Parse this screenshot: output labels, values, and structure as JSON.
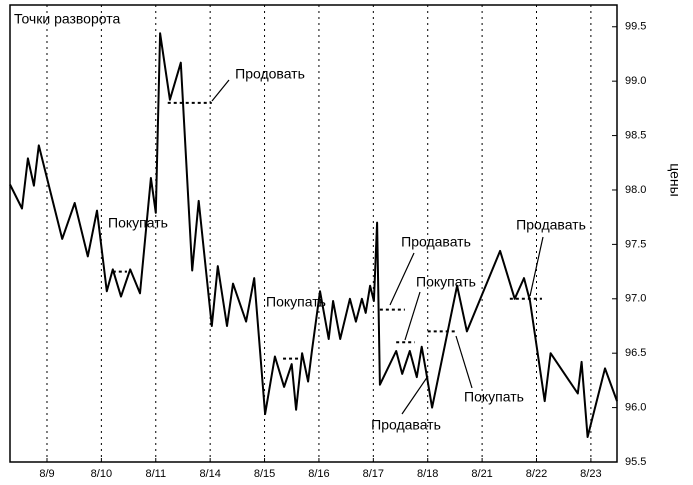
{
  "chart_data": {
    "type": "line",
    "title": "Точки разворота",
    "y_label": "цены",
    "x": [
      -0.68,
      -0.46,
      -0.35,
      -0.24,
      -0.15,
      0.28,
      0.51,
      0.75,
      0.92,
      1.1,
      1.21,
      1.36,
      1.53,
      1.71,
      1.91,
      2.0,
      2.08,
      2.26,
      2.46,
      2.67,
      2.79,
      3.03,
      3.14,
      3.31,
      3.42,
      3.66,
      3.81,
      4.01,
      4.19,
      4.36,
      4.5,
      4.58,
      4.69,
      4.8,
      4.87,
      5.02,
      5.18,
      5.26,
      5.39,
      5.57,
      5.68,
      5.79,
      5.86,
      5.94,
      6.01,
      6.07,
      6.12,
      6.42,
      6.53,
      6.67,
      6.8,
      6.89,
      6.97,
      7.08,
      7.54,
      7.72,
      8.33,
      8.6,
      8.77,
      8.88,
      9.15,
      9.26,
      9.76,
      9.83,
      9.94,
      10.26,
      10.48
    ],
    "values": [
      98.05,
      97.83,
      98.29,
      98.04,
      98.41,
      97.55,
      97.88,
      97.39,
      97.81,
      97.07,
      97.27,
      97.02,
      97.27,
      97.05,
      98.11,
      97.79,
      99.44,
      98.83,
      99.17,
      97.26,
      97.9,
      96.75,
      97.3,
      96.75,
      97.14,
      96.79,
      97.19,
      95.94,
      96.47,
      96.19,
      96.4,
      95.98,
      96.5,
      96.24,
      96.52,
      97.07,
      96.63,
      96.98,
      96.63,
      97.0,
      96.79,
      97.0,
      96.87,
      97.12,
      96.98,
      97.7,
      96.21,
      96.52,
      96.31,
      96.52,
      96.28,
      96.56,
      96.33,
      96.0,
      97.12,
      96.7,
      97.44,
      97.0,
      97.19,
      96.98,
      96.06,
      96.5,
      96.13,
      96.42,
      95.73,
      96.36,
      96.06
    ],
    "color": "#000000",
    "xlim": [
      -0.68,
      10.48
    ],
    "xticks": [
      {
        "value": 0,
        "label": "8/9"
      },
      {
        "value": 1,
        "label": "8/10"
      },
      {
        "value": 2,
        "label": "8/11"
      },
      {
        "value": 3,
        "label": "8/14"
      },
      {
        "value": 4,
        "label": "8/15"
      },
      {
        "value": 5,
        "label": "8/16"
      },
      {
        "value": 6,
        "label": "8/17"
      },
      {
        "value": 7,
        "label": "8/18"
      },
      {
        "value": 8,
        "label": "8/21"
      },
      {
        "value": 9,
        "label": "8/22"
      },
      {
        "value": 10,
        "label": "8/23"
      }
    ],
    "ylim": [
      95.5,
      99.7
    ],
    "yticks": [
      95.5,
      {
        "value": 96,
        "label": "96.0"
      },
      96.5,
      {
        "value": 97,
        "label": "97.0"
      },
      97.5,
      {
        "value": 98,
        "label": "98.0"
      },
      98.5,
      {
        "value": 99,
        "label": "99.0"
      },
      99.5
    ],
    "grid": true,
    "levels": [
      {
        "value": 97.25,
        "x": [
          1.21,
          1.47
        ]
      },
      {
        "value": 98.8,
        "x": [
          2.22,
          3.03
        ]
      },
      {
        "value": 96.45,
        "x": [
          4.34,
          4.65
        ]
      },
      {
        "value": 96.9,
        "x": [
          6.12,
          6.58
        ]
      },
      {
        "value": 96.6,
        "x": [
          6.42,
          6.76
        ]
      },
      {
        "value": 96.7,
        "x": [
          7.0,
          7.5
        ]
      },
      {
        "value": 97.0,
        "x": [
          8.51,
          9.1
        ]
      }
    ],
    "annotations": [
      "Покупать",
      "Продовать",
      "Покупать",
      "Продавать",
      "Покупать",
      "Продавать",
      "Покупать",
      "Продавать"
    ]
  }
}
